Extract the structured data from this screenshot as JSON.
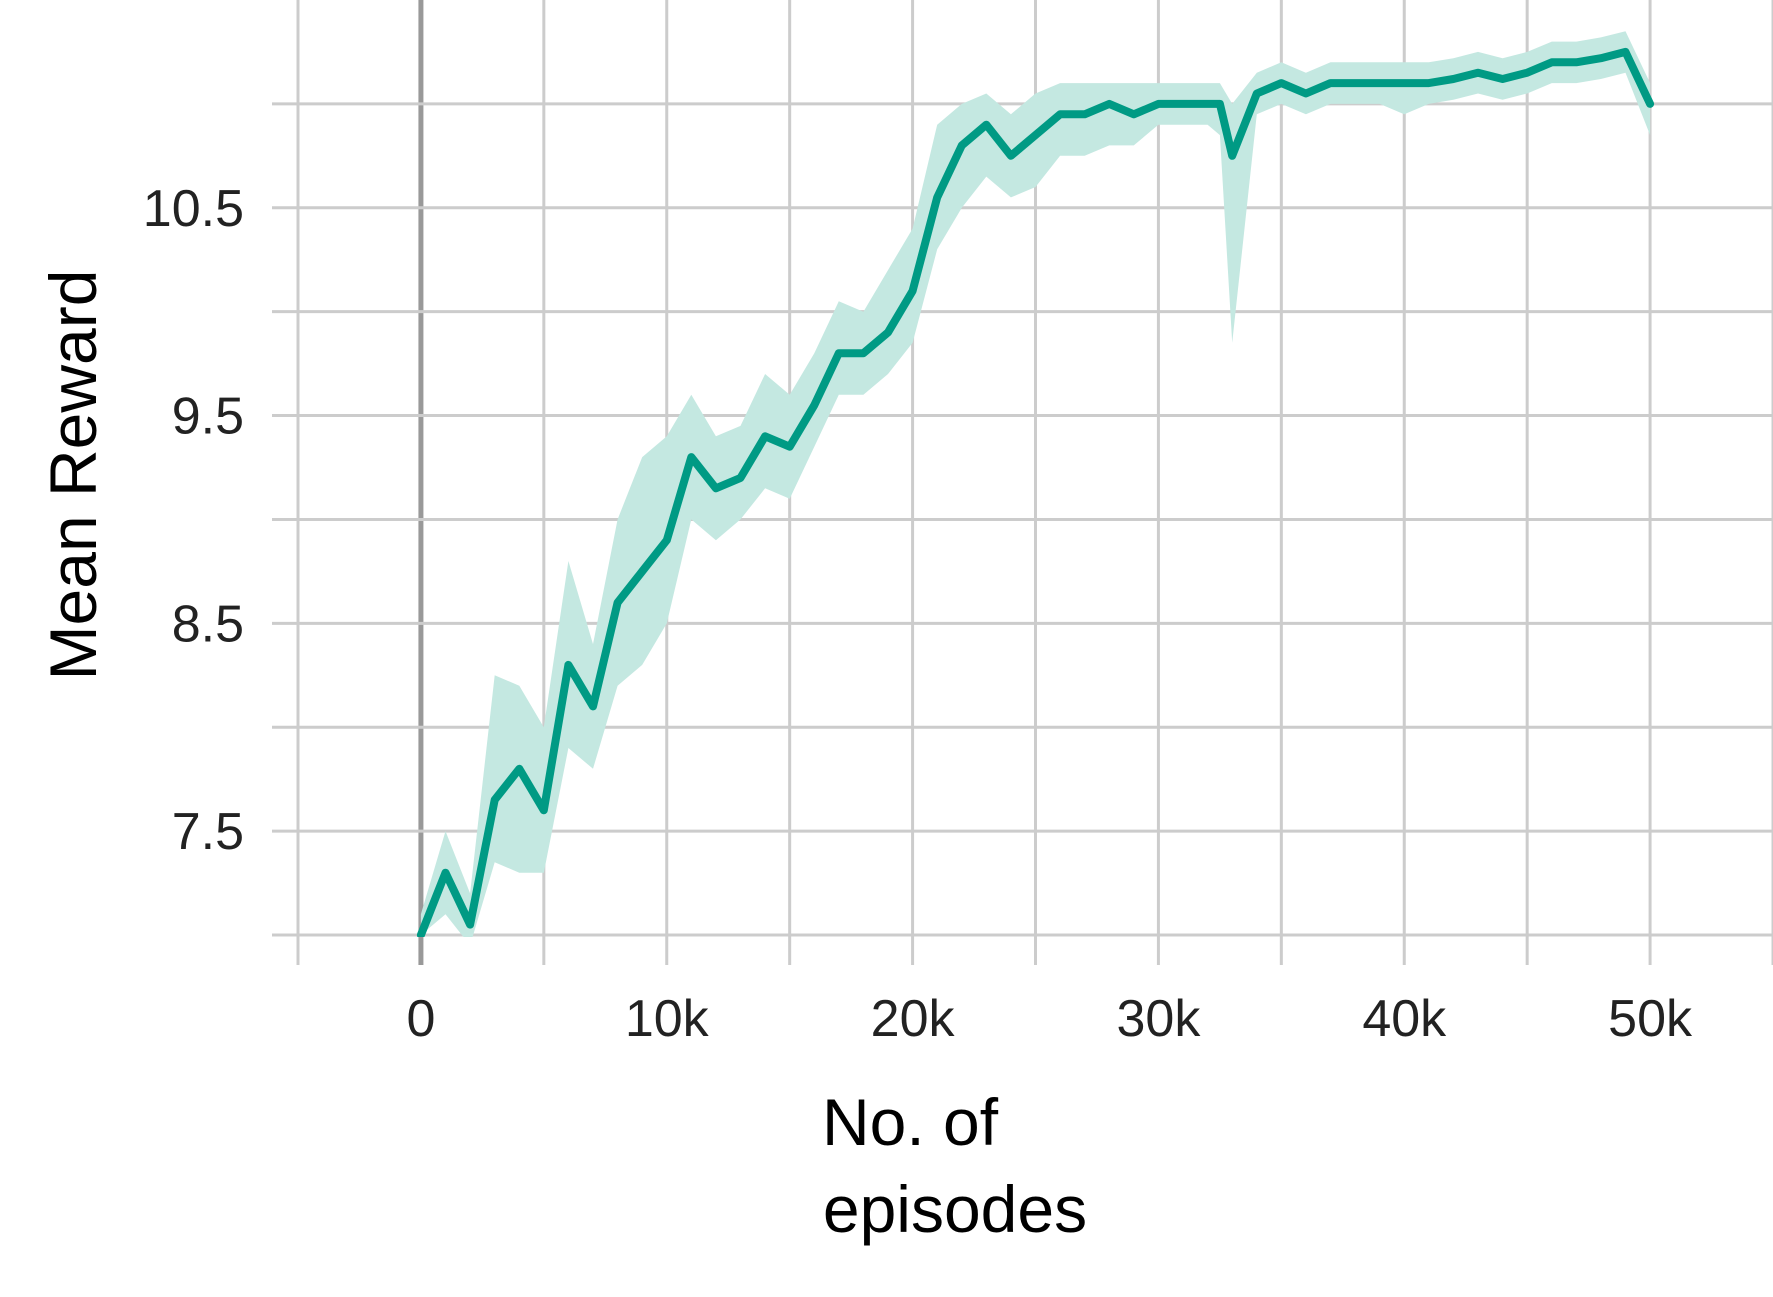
{
  "chart_data": {
    "type": "line",
    "title": "",
    "xlabel_lines": [
      "No. of",
      "episodes"
    ],
    "ylabel": "Mean Reward",
    "xlim": [
      -5000,
      55000
    ],
    "ylim": [
      7.0,
      11.5
    ],
    "x_ticks": [
      {
        "value": 0,
        "label": "0"
      },
      {
        "value": 10000,
        "label": "10k"
      },
      {
        "value": 20000,
        "label": "20k"
      },
      {
        "value": 30000,
        "label": "30k"
      },
      {
        "value": 40000,
        "label": "40k"
      },
      {
        "value": 50000,
        "label": "50k"
      }
    ],
    "y_ticks": [
      {
        "value": 7.5,
        "label": "7.5"
      },
      {
        "value": 8.5,
        "label": "8.5"
      },
      {
        "value": 9.5,
        "label": "9.5"
      },
      {
        "value": 10.5,
        "label": "10.5"
      }
    ],
    "x_minor_gridlines": [
      -5000,
      5000,
      15000,
      25000,
      35000,
      45000,
      55000
    ],
    "y_minor_gridlines": [
      7.0,
      8.0,
      9.0,
      10.0,
      11.0
    ],
    "grid": true,
    "zero_line": true,
    "legend": "none",
    "colors": {
      "line": "#009a84",
      "band": "#c4e8e1",
      "grid": "#cccccc",
      "zero_line": "#999999",
      "text": "#222222"
    },
    "series": [
      {
        "x": [
          0,
          1000,
          2000,
          3000,
          4000,
          5000,
          6000,
          7000,
          8000,
          9000,
          10000,
          11000,
          12000,
          13000,
          14000,
          15000,
          16000,
          17000,
          18000,
          19000,
          20000,
          21000,
          22000,
          23000,
          24000,
          25000,
          26000,
          27000,
          28000,
          29000,
          30000,
          31000,
          32000,
          32500,
          33000,
          34000,
          35000,
          36000,
          37000,
          38000,
          39000,
          40000,
          41000,
          42000,
          43000,
          44000,
          45000,
          46000,
          47000,
          48000,
          49000,
          50000
        ],
        "y": [
          7.0,
          7.3,
          7.05,
          7.65,
          7.8,
          7.6,
          8.3,
          8.1,
          8.6,
          8.75,
          8.9,
          9.3,
          9.15,
          9.2,
          9.4,
          9.35,
          9.55,
          9.8,
          9.8,
          9.9,
          10.1,
          10.55,
          10.8,
          10.9,
          10.75,
          10.85,
          10.95,
          10.95,
          11.0,
          10.95,
          11.0,
          11.0,
          11.0,
          11.0,
          10.75,
          11.05,
          11.1,
          11.05,
          11.1,
          11.1,
          11.1,
          11.1,
          11.1,
          11.12,
          11.15,
          11.12,
          11.15,
          11.2,
          11.2,
          11.22,
          11.25,
          11.0
        ],
        "lower": [
          7.0,
          7.1,
          6.95,
          7.35,
          7.3,
          7.3,
          7.9,
          7.8,
          8.2,
          8.3,
          8.5,
          9.0,
          8.9,
          9.0,
          9.15,
          9.1,
          9.35,
          9.6,
          9.6,
          9.7,
          9.85,
          10.3,
          10.5,
          10.65,
          10.55,
          10.6,
          10.75,
          10.75,
          10.8,
          10.8,
          10.9,
          10.9,
          10.9,
          10.85,
          9.85,
          10.95,
          11.0,
          10.95,
          11.0,
          11.0,
          11.0,
          10.95,
          11.0,
          11.02,
          11.05,
          11.02,
          11.05,
          11.1,
          11.1,
          11.12,
          11.15,
          10.85
        ],
        "upper": [
          7.1,
          7.5,
          7.2,
          8.25,
          8.2,
          8.0,
          8.8,
          8.4,
          9.0,
          9.3,
          9.4,
          9.6,
          9.4,
          9.45,
          9.7,
          9.6,
          9.8,
          10.05,
          10.0,
          10.2,
          10.4,
          10.9,
          11.0,
          11.05,
          10.95,
          11.05,
          11.1,
          11.1,
          11.1,
          11.1,
          11.1,
          11.1,
          11.1,
          11.1,
          11.0,
          11.15,
          11.2,
          11.15,
          11.2,
          11.2,
          11.2,
          11.2,
          11.2,
          11.22,
          11.25,
          11.22,
          11.25,
          11.3,
          11.3,
          11.32,
          11.35,
          11.1
        ]
      }
    ]
  }
}
